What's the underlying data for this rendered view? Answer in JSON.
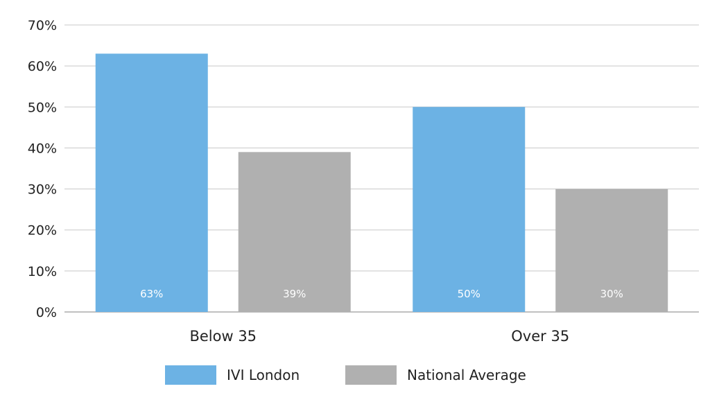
{
  "chart_data": {
    "type": "bar",
    "categories": [
      "Below 35",
      "Over 35"
    ],
    "series": [
      {
        "name": "IVI London",
        "values": [
          63,
          50
        ],
        "color": "#6cb2e4"
      },
      {
        "name": "National Average",
        "values": [
          39,
          30
        ],
        "color": "#b0b0b0"
      }
    ],
    "data_labels": [
      [
        "63%",
        "50%"
      ],
      [
        "39%",
        "30%"
      ]
    ],
    "y_ticks": [
      "0%",
      "10%",
      "20%",
      "30%",
      "40%",
      "50%",
      "60%",
      "70%"
    ],
    "ylim": [
      0,
      70
    ],
    "grid": true,
    "legend": "bottom-center"
  }
}
